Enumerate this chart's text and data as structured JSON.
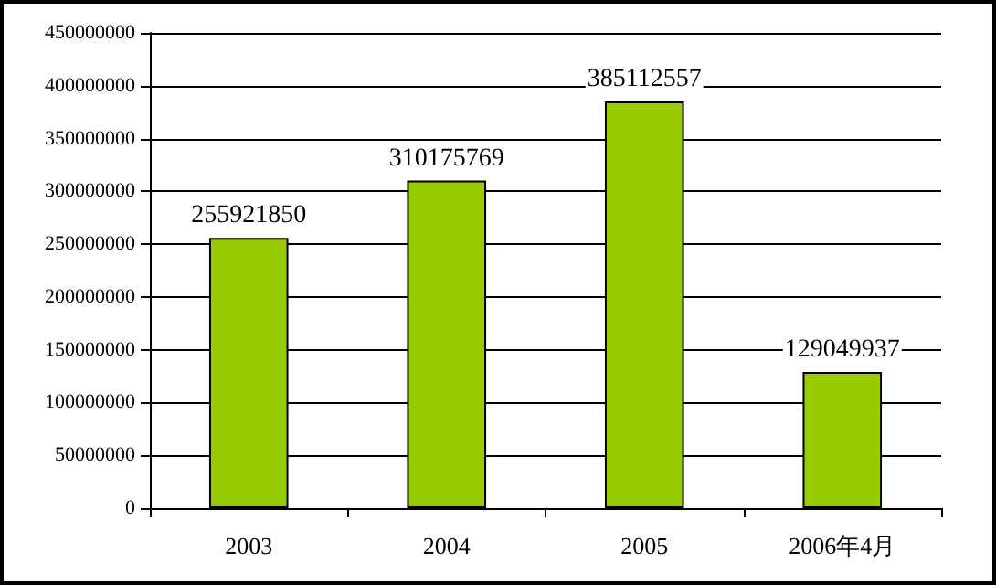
{
  "chart_data": {
    "type": "bar",
    "categories": [
      "2003",
      "2004",
      "2005",
      "2006年4月"
    ],
    "values": [
      255921850,
      310175769,
      385112557,
      129049937
    ],
    "color": "#99cc00",
    "ylim": [
      0,
      450000000
    ],
    "yticks": [
      0,
      50000000,
      100000000,
      150000000,
      200000000,
      250000000,
      300000000,
      350000000,
      400000000,
      450000000
    ],
    "grid": "y",
    "data_labels": true
  }
}
